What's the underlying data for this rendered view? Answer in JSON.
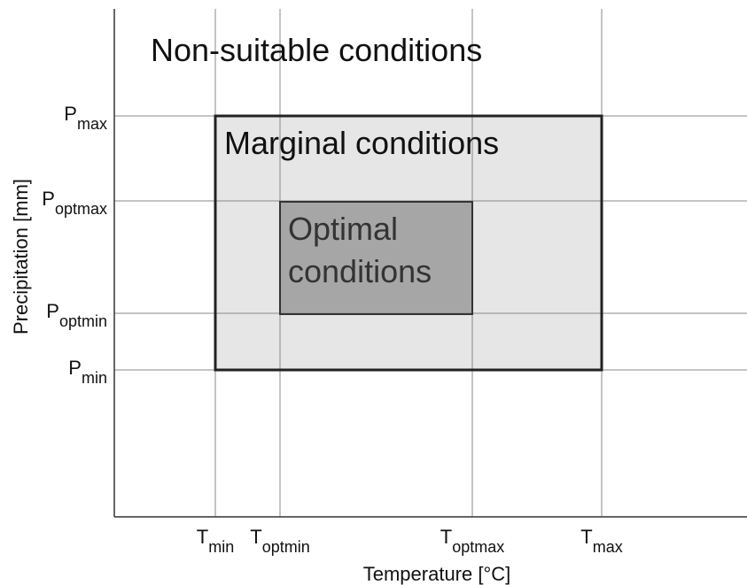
{
  "title_regions": {
    "non_suitable": "Non-suitable conditions",
    "marginal": "Marginal conditions",
    "optimal": [
      "Optimal",
      "conditions"
    ]
  },
  "x_axis": {
    "label": "Temperature [°C]",
    "ticks": [
      {
        "symbol": "T",
        "subscript": "min"
      },
      {
        "symbol": "T",
        "subscript": "optmin"
      },
      {
        "symbol": "T",
        "subscript": "optmax"
      },
      {
        "symbol": "T",
        "subscript": "max"
      }
    ]
  },
  "y_axis": {
    "label": "Precipitation [mm]",
    "ticks": [
      {
        "symbol": "P",
        "subscript": "max"
      },
      {
        "symbol": "P",
        "subscript": "optmax"
      },
      {
        "symbol": "P",
        "subscript": "optmin"
      },
      {
        "symbol": "P",
        "subscript": "min"
      }
    ]
  }
}
